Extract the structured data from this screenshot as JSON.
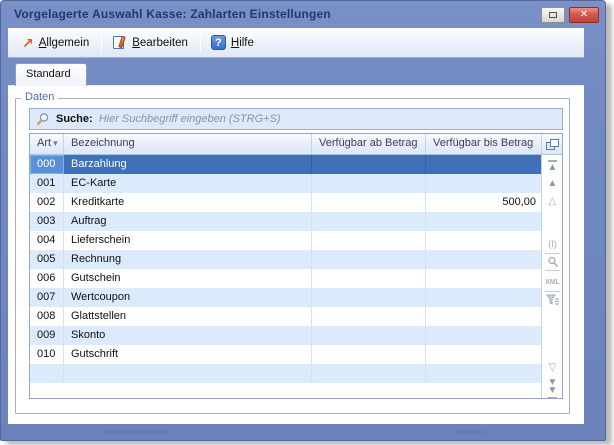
{
  "window": {
    "title": "Vorgelagerte Auswahl Kasse: Zahlarten Einstellungen"
  },
  "titlebar": {
    "close_glyph": "✕",
    "minimize_icon": "minimize-icon",
    "close_icon": "close-icon"
  },
  "toolbar": {
    "items": [
      {
        "label": "Allgemein",
        "accel": "A",
        "icon": "arrow-up-right-icon",
        "glyph": "↗"
      },
      {
        "label": "Bearbeiten",
        "accel": "B",
        "icon": "edit-pen-icon"
      },
      {
        "label": "Hilfe",
        "accel": "H",
        "icon": "help-icon",
        "glyph": "?"
      }
    ]
  },
  "tab": {
    "label": "Standard"
  },
  "daten": {
    "legend": "Daten"
  },
  "search": {
    "label": "Suche:",
    "placeholder": "Hier Suchbegriff eingeben (STRG+S)",
    "icon": "search-icon"
  },
  "grid": {
    "sort_indicator": "▾",
    "columns": [
      {
        "label": "Art"
      },
      {
        "label": "Bezeichnung"
      },
      {
        "label": "Verfügbar ab Betrag"
      },
      {
        "label": "Verfügbar bis Betrag"
      }
    ],
    "rows": [
      {
        "art": "000",
        "name": "Barzahlung",
        "ab": "",
        "bis": "",
        "selected": true
      },
      {
        "art": "001",
        "name": "EC-Karte",
        "ab": "",
        "bis": ""
      },
      {
        "art": "002",
        "name": "Kreditkarte",
        "ab": "",
        "bis": "500,00"
      },
      {
        "art": "003",
        "name": "Auftrag",
        "ab": "",
        "bis": ""
      },
      {
        "art": "004",
        "name": "Lieferschein",
        "ab": "",
        "bis": ""
      },
      {
        "art": "005",
        "name": "Rechnung",
        "ab": "",
        "bis": ""
      },
      {
        "art": "006",
        "name": "Gutschein",
        "ab": "",
        "bis": ""
      },
      {
        "art": "007",
        "name": "Wertcoupon",
        "ab": "",
        "bis": ""
      },
      {
        "art": "008",
        "name": "Glattstellen",
        "ab": "",
        "bis": ""
      },
      {
        "art": "009",
        "name": "Skonto",
        "ab": "",
        "bis": ""
      },
      {
        "art": "010",
        "name": "Gutschrift",
        "ab": "",
        "bis": ""
      }
    ],
    "side_icons": {
      "chooser": "column-chooser-icon",
      "scroll_top_glyph": "▲",
      "page_up_glyph": "▲",
      "row_up_glyph": "△",
      "fit_label": "(I)",
      "xml_label": "XML",
      "row_down_glyph": "▽",
      "page_down_glyph": "▼",
      "scroll_bottom_glyph": "▼"
    }
  },
  "colors": {
    "frame_blue": "#7089c0",
    "selected_row": "#4070b8",
    "focused_cell": "#5b90d6",
    "zebra_blue": "#dcebfb",
    "search_bg": "#dde8f8",
    "close_red": "#c94437",
    "title_text": "#1c3a74"
  }
}
